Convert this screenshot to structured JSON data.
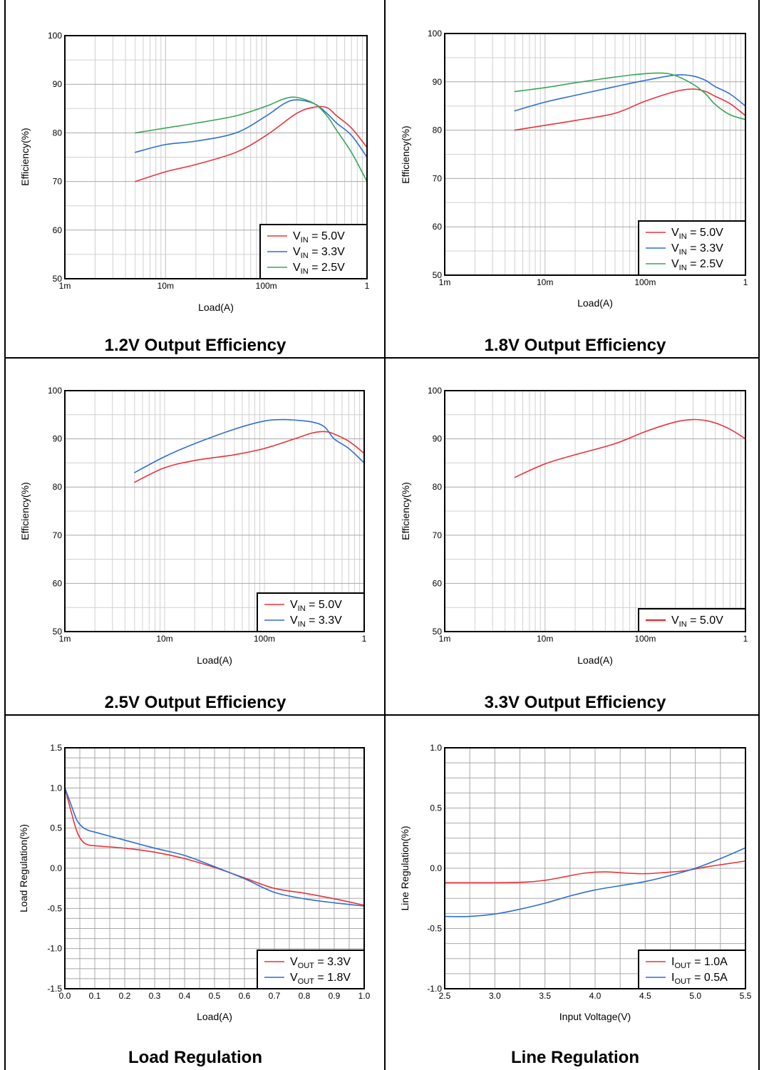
{
  "chart_data": [
    {
      "panel": "p1",
      "type": "line",
      "title": "1.2V Output Efficiency",
      "xlabel": "Load(A)",
      "ylabel": "Efficiency(%)",
      "xscale": "log",
      "xlim": [
        0.001,
        1
      ],
      "ylim": [
        50,
        100
      ],
      "xticks": [
        0.001,
        0.01,
        0.1,
        1
      ],
      "xtick_labels": [
        "1m",
        "10m",
        "100m",
        "1"
      ],
      "yticks": [
        50,
        60,
        70,
        80,
        90,
        100
      ],
      "ytick_labels": [
        "50",
        "60",
        "70",
        "80",
        "90",
        "100"
      ],
      "grid": true,
      "legend_position": "bottom-right",
      "series": [
        {
          "label_main": "V",
          "label_sub": "IN",
          "label_rest": " = 5.0V",
          "color": "#e8333c",
          "x": [
            0.005,
            0.01,
            0.02,
            0.05,
            0.1,
            0.2,
            0.3,
            0.4,
            0.5,
            0.7,
            1.0
          ],
          "y": [
            70,
            72,
            73.5,
            76,
            79.5,
            84,
            85.3,
            85.2,
            83.5,
            81,
            77
          ]
        },
        {
          "label_main": "V",
          "label_sub": "IN",
          "label_rest": " = 3.3V",
          "color": "#2f6fd0",
          "x": [
            0.005,
            0.01,
            0.02,
            0.05,
            0.1,
            0.15,
            0.2,
            0.3,
            0.4,
            0.5,
            0.7,
            1.0
          ],
          "y": [
            76,
            77.6,
            78.3,
            80,
            83.5,
            86,
            86.8,
            86,
            84,
            82,
            79.5,
            75
          ]
        },
        {
          "label_main": "V",
          "label_sub": "IN",
          "label_rest": " = 2.5V",
          "color": "#3aa55a",
          "x": [
            0.005,
            0.01,
            0.02,
            0.05,
            0.1,
            0.15,
            0.2,
            0.3,
            0.4,
            0.5,
            0.7,
            1.0
          ],
          "y": [
            80,
            81,
            82,
            83.5,
            85.5,
            87,
            87.3,
            86,
            83.5,
            80.5,
            76,
            70
          ]
        }
      ]
    },
    {
      "panel": "p2",
      "type": "line",
      "title": "1.8V Output Efficiency",
      "xlabel": "Load(A)",
      "ylabel": "Efficiency(%)",
      "xscale": "log",
      "xlim": [
        0.001,
        1
      ],
      "ylim": [
        50,
        100
      ],
      "xticks": [
        0.001,
        0.01,
        0.1,
        1
      ],
      "xtick_labels": [
        "1m",
        "10m",
        "100m",
        "1"
      ],
      "yticks": [
        50,
        60,
        70,
        80,
        90,
        100
      ],
      "ytick_labels": [
        "50",
        "60",
        "70",
        "80",
        "90",
        "100"
      ],
      "grid": true,
      "legend_position": "bottom-right",
      "series": [
        {
          "label_main": "V",
          "label_sub": "IN",
          "label_rest": " = 5.0V",
          "color": "#e8333c",
          "x": [
            0.005,
            0.01,
            0.02,
            0.05,
            0.1,
            0.2,
            0.3,
            0.4,
            0.5,
            0.7,
            1.0
          ],
          "y": [
            80,
            81,
            82,
            83.5,
            86,
            88,
            88.5,
            88,
            87,
            85.5,
            83
          ]
        },
        {
          "label_main": "V",
          "label_sub": "IN",
          "label_rest": " = 3.3V",
          "color": "#2f6fd0",
          "x": [
            0.005,
            0.01,
            0.02,
            0.05,
            0.1,
            0.2,
            0.3,
            0.4,
            0.5,
            0.7,
            1.0
          ],
          "y": [
            84,
            85.8,
            87.2,
            89,
            90.3,
            91.4,
            91.2,
            90.3,
            89,
            87.5,
            85
          ]
        },
        {
          "label_main": "V",
          "label_sub": "IN",
          "label_rest": " = 2.5V",
          "color": "#3aa55a",
          "x": [
            0.005,
            0.01,
            0.02,
            0.05,
            0.1,
            0.15,
            0.2,
            0.3,
            0.4,
            0.5,
            0.7,
            1.0
          ],
          "y": [
            88,
            88.8,
            89.8,
            91,
            91.7,
            91.8,
            91.3,
            89.5,
            87.5,
            85.3,
            83.2,
            82.2
          ]
        }
      ]
    },
    {
      "panel": "p3",
      "type": "line",
      "title": "2.5V Output Efficiency",
      "xlabel": "Load(A)",
      "ylabel": "Efficiency(%)",
      "xscale": "log",
      "xlim": [
        0.001,
        1
      ],
      "ylim": [
        50,
        100
      ],
      "xticks": [
        0.001,
        0.01,
        0.1,
        1
      ],
      "xtick_labels": [
        "1m",
        "10m",
        "100m",
        "1"
      ],
      "yticks": [
        50,
        60,
        70,
        80,
        90,
        100
      ],
      "ytick_labels": [
        "50",
        "60",
        "70",
        "80",
        "90",
        "100"
      ],
      "grid": true,
      "legend_position": "bottom-right",
      "series": [
        {
          "label_main": "V",
          "label_sub": "IN",
          "label_rest": " = 5.0V",
          "color": "#e8333c",
          "x": [
            0.005,
            0.01,
            0.02,
            0.05,
            0.1,
            0.2,
            0.3,
            0.4,
            0.5,
            0.7,
            1.0
          ],
          "y": [
            81,
            84,
            85.5,
            86.7,
            88,
            90,
            91.2,
            91.5,
            91,
            89.5,
            87
          ]
        },
        {
          "label_main": "V",
          "label_sub": "IN",
          "label_rest": " = 3.3V",
          "color": "#2f6fd0",
          "x": [
            0.005,
            0.01,
            0.02,
            0.05,
            0.1,
            0.15,
            0.2,
            0.3,
            0.4,
            0.5,
            0.7,
            1.0
          ],
          "y": [
            83,
            86.3,
            89,
            92,
            93.7,
            94,
            93.9,
            93.5,
            92.5,
            90,
            88,
            85
          ]
        }
      ]
    },
    {
      "panel": "p4",
      "type": "line",
      "title": "3.3V Output Efficiency",
      "xlabel": "Load(A)",
      "ylabel": "Efficiency(%)",
      "xscale": "log",
      "xlim": [
        0.001,
        1
      ],
      "ylim": [
        50,
        100
      ],
      "xticks": [
        0.001,
        0.01,
        0.1,
        1
      ],
      "xtick_labels": [
        "1m",
        "10m",
        "100m",
        "1"
      ],
      "yticks": [
        50,
        60,
        70,
        80,
        90,
        100
      ],
      "ytick_labels": [
        "50",
        "60",
        "70",
        "80",
        "90",
        "100"
      ],
      "grid": true,
      "legend_position": "bottom-right",
      "series": [
        {
          "label_main": "V",
          "label_sub": "IN",
          "label_rest": " = 5.0V",
          "color": "#e8333c",
          "thick": true,
          "x": [
            0.005,
            0.01,
            0.02,
            0.05,
            0.1,
            0.2,
            0.3,
            0.4,
            0.5,
            0.7,
            1.0
          ],
          "y": [
            82,
            84.8,
            86.7,
            89,
            91.5,
            93.5,
            94,
            93.8,
            93.3,
            92,
            90
          ]
        }
      ]
    },
    {
      "panel": "p5",
      "type": "line",
      "title": "Load Regulation",
      "xlabel": "Load(A)",
      "ylabel": "Load Regulation(%)",
      "xscale": "linear",
      "xlim": [
        0,
        1
      ],
      "ylim": [
        -1.5,
        1.5
      ],
      "xticks": [
        0,
        0.1,
        0.2,
        0.3,
        0.4,
        0.5,
        0.6,
        0.7,
        0.8,
        0.9,
        1.0
      ],
      "xtick_labels": [
        "0.0",
        "0.1",
        "0.2",
        "0.3",
        "0.4",
        "0.5",
        "0.6",
        "0.7",
        "0.8",
        "0.9",
        "1.0"
      ],
      "yticks": [
        -1.5,
        -1.0,
        -0.5,
        0.0,
        0.5,
        1.0,
        1.5
      ],
      "ytick_labels": [
        "-1.5",
        "-1.0",
        "-0.5",
        "0.0",
        "0.5",
        "1.0",
        "1.5"
      ],
      "grid": true,
      "legend_position": "bottom-right",
      "series": [
        {
          "label_main": "V",
          "label_sub": "OUT",
          "label_rest": " = 3.3V",
          "color": "#e8333c",
          "x": [
            0,
            0.02,
            0.04,
            0.06,
            0.08,
            0.1,
            0.2,
            0.3,
            0.4,
            0.5,
            0.6,
            0.7,
            0.8,
            0.9,
            1.0
          ],
          "y": [
            1.0,
            0.72,
            0.46,
            0.33,
            0.29,
            0.28,
            0.25,
            0.2,
            0.12,
            0.01,
            -0.12,
            -0.25,
            -0.31,
            -0.38,
            -0.46
          ]
        },
        {
          "label_main": "V",
          "label_sub": "OUT",
          "label_rest": " = 1.8V",
          "color": "#2f6fd0",
          "x": [
            0,
            0.02,
            0.04,
            0.06,
            0.08,
            0.1,
            0.2,
            0.3,
            0.4,
            0.5,
            0.6,
            0.7,
            0.8,
            0.9,
            1.0
          ],
          "y": [
            1.0,
            0.8,
            0.6,
            0.51,
            0.47,
            0.45,
            0.35,
            0.25,
            0.16,
            0.02,
            -0.13,
            -0.3,
            -0.38,
            -0.43,
            -0.47
          ]
        }
      ]
    },
    {
      "panel": "p6",
      "type": "line",
      "title": "Line Regulation",
      "xlabel": "Input Voltage(V)",
      "ylabel": "Line Regulation(%)",
      "xscale": "linear",
      "xlim": [
        2.5,
        5.5
      ],
      "ylim": [
        -1.0,
        1.0
      ],
      "xticks": [
        2.5,
        3.0,
        3.5,
        4.0,
        4.5,
        5.0,
        5.5
      ],
      "xtick_labels": [
        "2.5",
        "3.0",
        "3.5",
        "4.0",
        "4.5",
        "5.0",
        "5.5"
      ],
      "yticks": [
        -1.0,
        -0.5,
        0.0,
        0.5,
        1.0
      ],
      "ytick_labels": [
        "-1.0",
        "-0.5",
        "0.0",
        "0.5",
        "1.0"
      ],
      "grid": true,
      "legend_position": "bottom-right",
      "series": [
        {
          "label_main": "I",
          "label_sub": "OUT",
          "label_rest": " = 1.0A",
          "color": "#e8333c",
          "x": [
            2.5,
            3.0,
            3.3,
            3.5,
            3.7,
            3.9,
            4.1,
            4.3,
            4.5,
            4.7,
            4.9,
            5.1,
            5.3,
            5.5
          ],
          "y": [
            -0.12,
            -0.12,
            -0.115,
            -0.1,
            -0.07,
            -0.04,
            -0.03,
            -0.04,
            -0.045,
            -0.035,
            -0.02,
            0.01,
            0.035,
            0.06
          ]
        },
        {
          "label_main": "I",
          "label_sub": "OUT",
          "label_rest": " = 0.5A",
          "color": "#2f6fd0",
          "x": [
            2.5,
            2.75,
            3.0,
            3.25,
            3.5,
            3.75,
            4.0,
            4.25,
            4.5,
            4.75,
            5.0,
            5.25,
            5.5
          ],
          "y": [
            -0.4,
            -0.4,
            -0.38,
            -0.34,
            -0.29,
            -0.23,
            -0.18,
            -0.145,
            -0.11,
            -0.06,
            0.0,
            0.08,
            0.17
          ]
        }
      ]
    }
  ]
}
